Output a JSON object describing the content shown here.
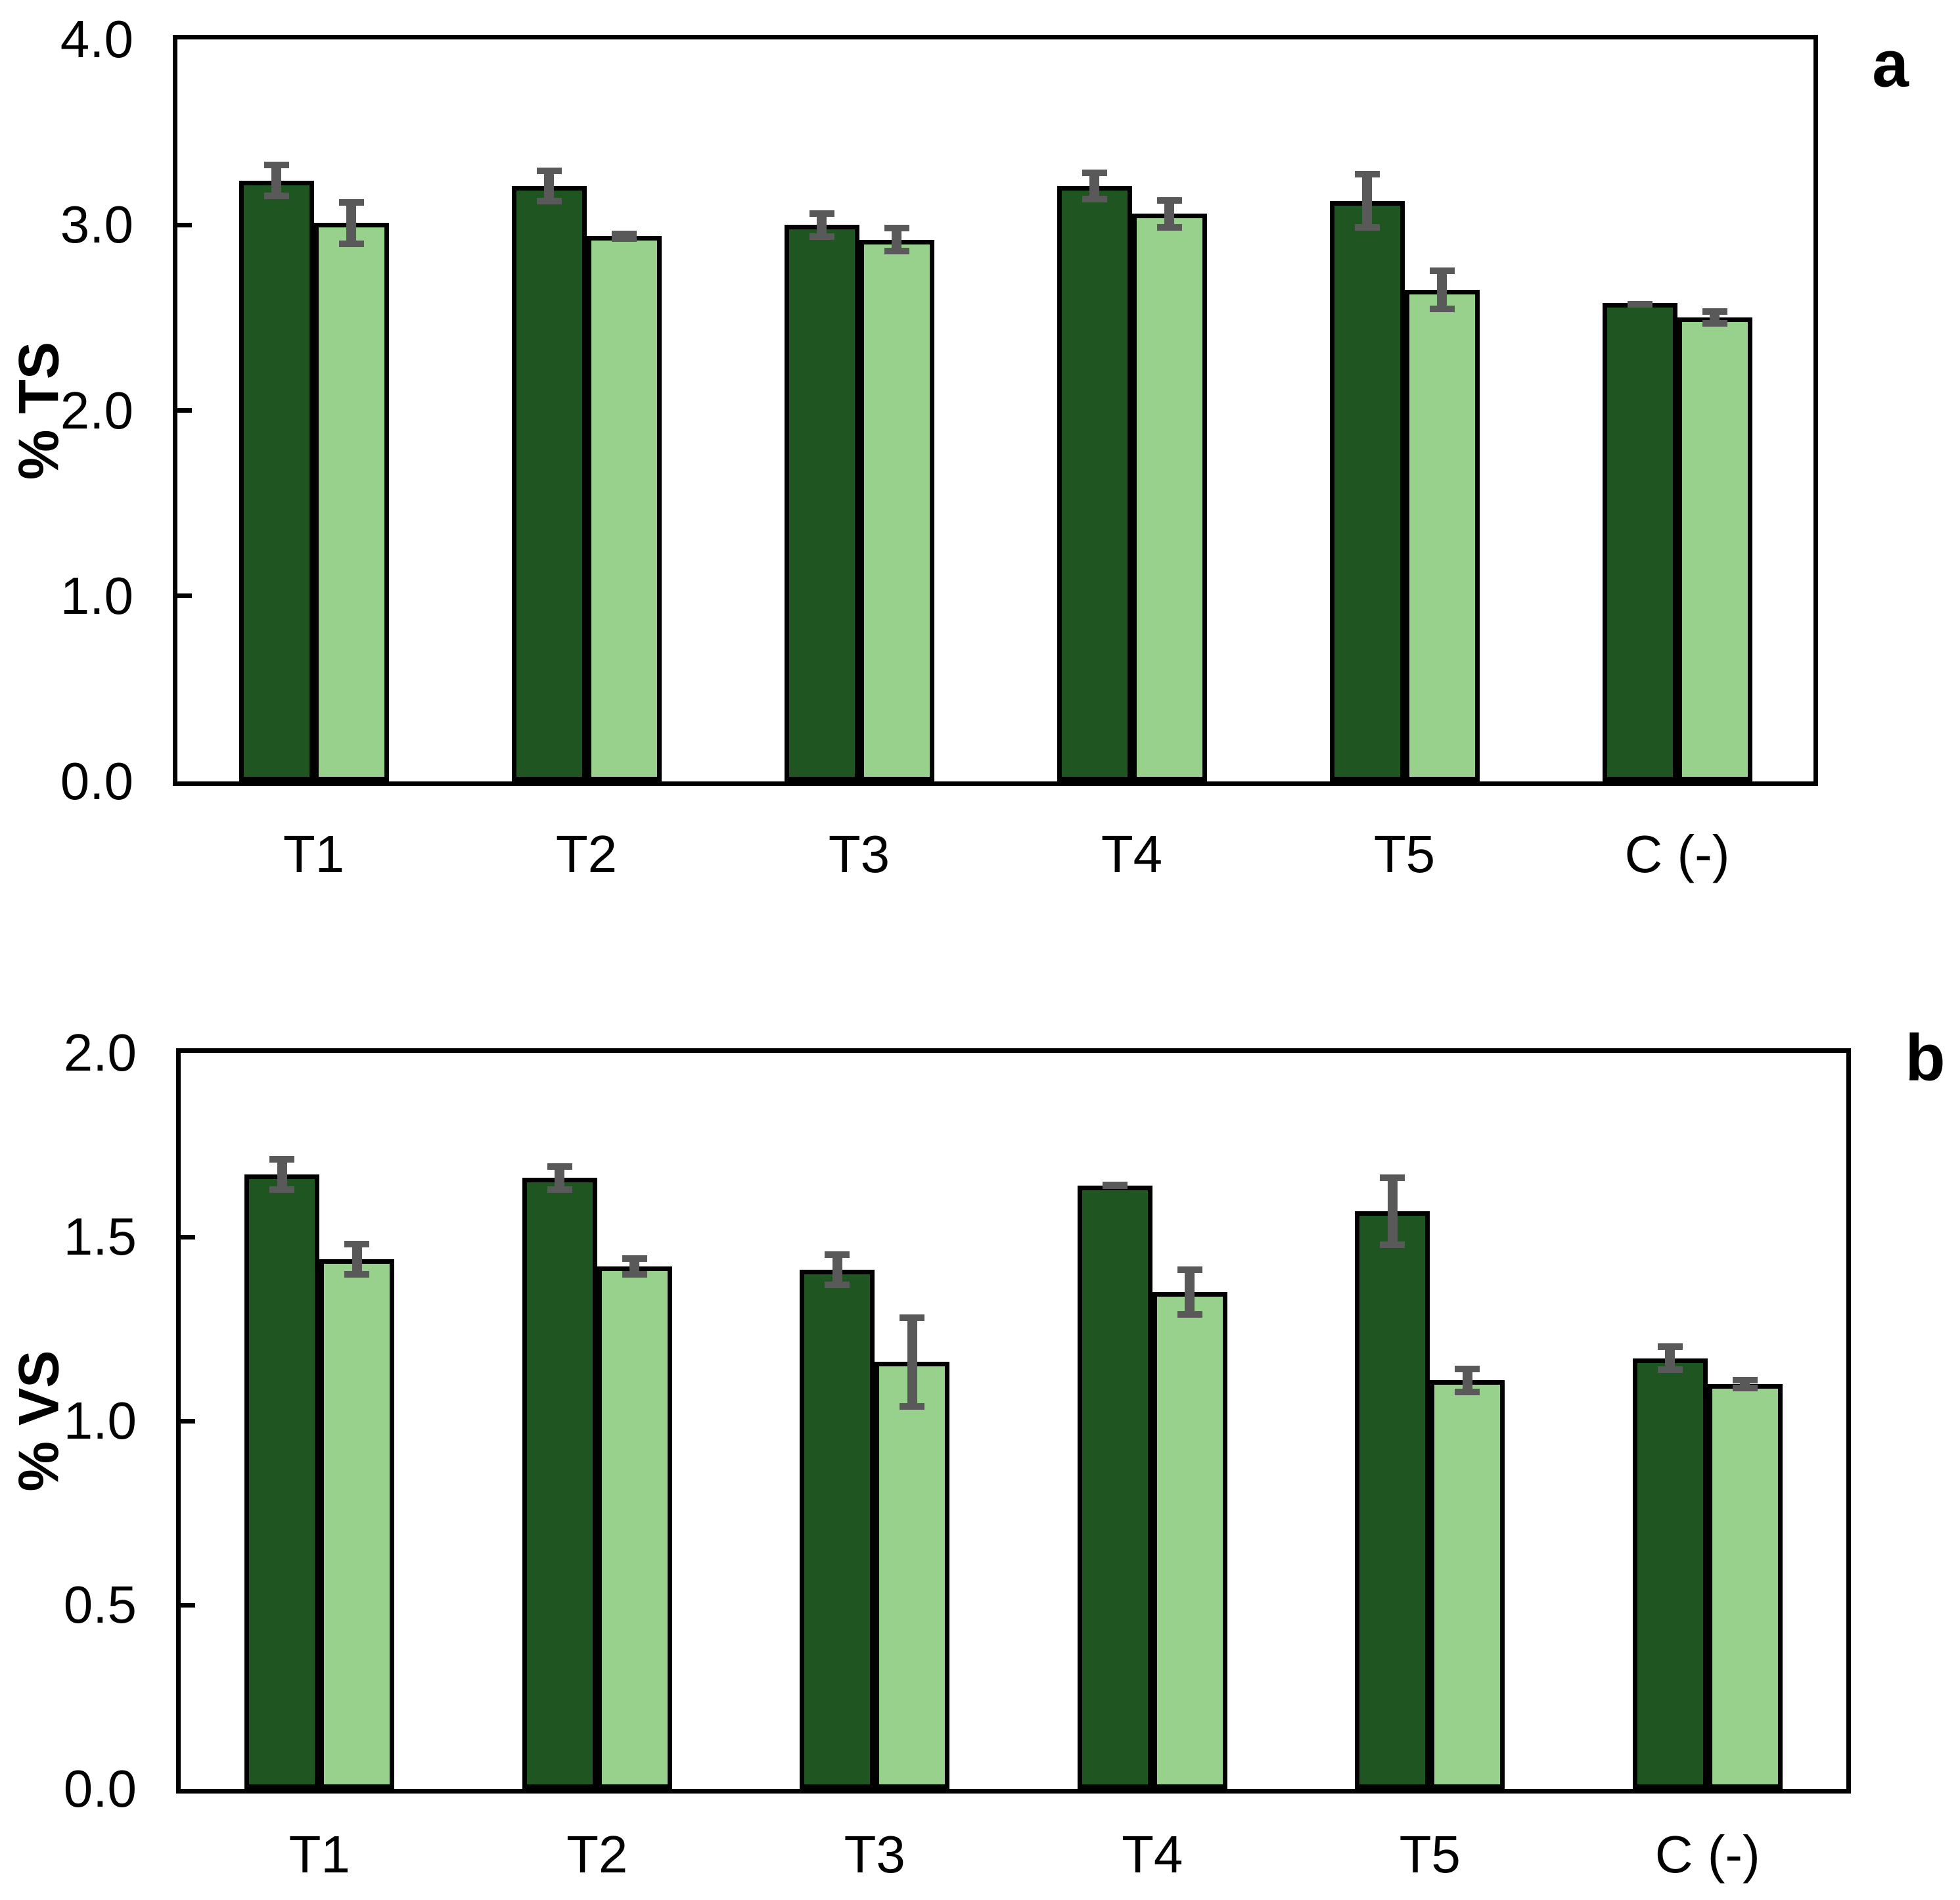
{
  "panels": [
    {
      "letter": "a",
      "y_axis_title": "% TS",
      "y_tick_labels": [
        "4.0",
        "3.0",
        "2.0",
        "1.0",
        "0.0"
      ],
      "x_labels": [
        "T1",
        "T2",
        "T3",
        "T4",
        "T5",
        "C (-)"
      ]
    },
    {
      "letter": "b",
      "y_axis_title": "% VS",
      "y_tick_labels": [
        "2.0",
        "1.5",
        "1.0",
        "0.5",
        "0.0"
      ],
      "x_labels": [
        "T1",
        "T2",
        "T3",
        "T4",
        "T5",
        "C (-)"
      ]
    }
  ],
  "colors": {
    "bar_dark_green": "#1F5520",
    "bar_light_green": "#97D18C",
    "bar_border": "#000000",
    "error_bar_gray": "#595959",
    "axis_black": "#000000",
    "background": "#FFFFFF"
  },
  "chart_data": [
    {
      "type": "bar",
      "panel": "a",
      "title": "",
      "xlabel": "",
      "ylabel": "% TS",
      "categories": [
        "T1",
        "T2",
        "T3",
        "T4",
        "T5",
        "C (-)"
      ],
      "series": [
        {
          "name": "dark_green_bars",
          "color": "#1F5520",
          "values": [
            3.24,
            3.21,
            3.0,
            3.21,
            3.13,
            2.58
          ],
          "errors": [
            0.1,
            0.1,
            0.08,
            0.09,
            0.16,
            0.01
          ]
        },
        {
          "name": "light_green_bars",
          "color": "#97D18C",
          "values": [
            3.01,
            2.94,
            2.92,
            3.06,
            2.65,
            2.5
          ],
          "errors": [
            0.13,
            0.03,
            0.08,
            0.09,
            0.12,
            0.05
          ]
        }
      ],
      "ylim": [
        0.0,
        4.0
      ],
      "ytick_step": 1.0,
      "y_tick_labels": [
        "4.0",
        "3.0",
        "2.0",
        "1.0",
        "0.0"
      ],
      "error_bars": true,
      "grid": false,
      "legend": "none"
    },
    {
      "type": "bar",
      "panel": "b",
      "title": "",
      "xlabel": "",
      "ylabel": "% VS",
      "categories": [
        "T1",
        "T2",
        "T3",
        "T4",
        "T5",
        "C (-)"
      ],
      "series": [
        {
          "name": "dark_green_bars",
          "color": "#1F5520",
          "values": [
            1.67,
            1.66,
            1.41,
            1.64,
            1.57,
            1.17
          ],
          "errors": [
            0.05,
            0.04,
            0.05,
            0.01,
            0.1,
            0.04
          ]
        },
        {
          "name": "light_green_bars",
          "color": "#97D18C",
          "values": [
            1.44,
            1.42,
            1.16,
            1.35,
            1.11,
            1.1
          ],
          "errors": [
            0.05,
            0.03,
            0.13,
            0.07,
            0.04,
            0.02
          ]
        }
      ],
      "ylim": [
        0.0,
        2.0
      ],
      "ytick_step": 0.5,
      "y_tick_labels": [
        "2.0",
        "1.5",
        "1.0",
        "0.5",
        "0.0"
      ],
      "error_bars": true,
      "grid": false,
      "legend": "none"
    }
  ]
}
